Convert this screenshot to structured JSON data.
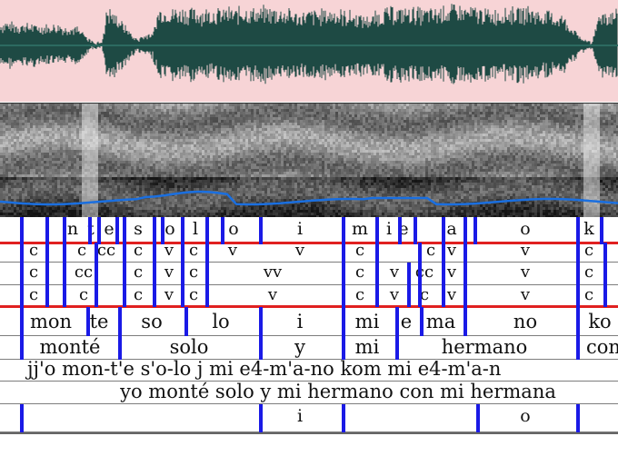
{
  "tiers": [
    {
      "name": "phoneme",
      "labels": [
        "n",
        "t",
        "e",
        "s",
        "o",
        "l",
        "o",
        "i",
        "m",
        "i",
        "e",
        "a",
        "o",
        "k"
      ]
    },
    {
      "name": "cv_a",
      "labels": [
        "c",
        "c",
        "cc",
        "c",
        "v",
        "c",
        "v",
        "v",
        "c",
        "c",
        "v",
        "v",
        "c"
      ]
    },
    {
      "name": "cv_b",
      "labels": [
        "c",
        "cc",
        "c",
        "v",
        "c",
        "vv",
        "c",
        "v",
        "cc",
        "v",
        "v",
        "c"
      ]
    },
    {
      "name": "cv_c",
      "labels": [
        "c",
        "c",
        "c",
        "v",
        "c",
        "v",
        "c",
        "v",
        "c",
        "v",
        "v",
        "c"
      ]
    },
    {
      "name": "syllable",
      "labels": [
        "mon",
        "te",
        "so",
        "lo",
        "i",
        "mi",
        "e",
        "ma",
        "no",
        "ko"
      ]
    },
    {
      "name": "word",
      "labels": [
        "monté",
        "solo",
        "y",
        "mi",
        "hermano",
        "con"
      ]
    },
    {
      "name": "transcription",
      "text": "jj'o mon-t'e s'o-lo j mi e4-m'a-no kom mi e4-m'a-n"
    },
    {
      "name": "orthographic",
      "text": "yo monté solo y mi hermano con mi hermana"
    },
    {
      "name": "break",
      "labels": [
        "i",
        "o"
      ]
    }
  ]
}
